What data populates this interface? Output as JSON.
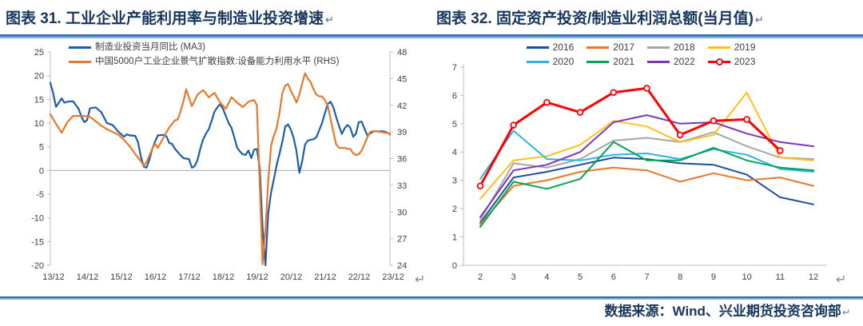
{
  "page": {
    "fig31_title": "图表 31. 工业企业产能利用率与制造业投资增速",
    "fig32_title": "图表 32. 固定资产投资/制造业利润总额(当月值)",
    "return_mark": "↵",
    "source_text": "数据来源：Wind、兴业期货投资咨询部",
    "accent_rule_color": "#2E6DA8",
    "title_color": "#17365D"
  },
  "chart_data": [
    {
      "type": "line",
      "title": "工业企业产能利用率与制造业投资增速",
      "grid": false,
      "legend_position": "top-left",
      "x_axis": {
        "unit": "months since 2013-12",
        "tick_months": [
          0,
          12,
          24,
          36,
          48,
          60,
          72,
          84,
          96,
          108,
          120
        ],
        "tick_labels": [
          "13/12",
          "14/12",
          "15/12",
          "16/12",
          "17/12",
          "18/12",
          "19/12",
          "20/12",
          "21/12",
          "22/12",
          "23/12"
        ]
      },
      "left_axis": {
        "range": [
          -20,
          25
        ],
        "ticks": [
          "25",
          "20",
          "15",
          "10",
          "5",
          "0",
          "-5",
          "-10",
          "-15",
          "-20"
        ],
        "tick_values": [
          25,
          20,
          15,
          10,
          5,
          0,
          -5,
          -10,
          -15,
          -20
        ]
      },
      "right_axis": {
        "range": [
          24,
          48
        ],
        "ticks": [
          "48",
          "45",
          "42",
          "39",
          "36",
          "33",
          "30",
          "27",
          "24"
        ],
        "tick_values": [
          48,
          45,
          42,
          39,
          36,
          33,
          30,
          27,
          24
        ]
      },
      "series": [
        {
          "name": "制造业投资当月同比 (MA3)",
          "axis": "left",
          "color": "#1F5CA9",
          "points": [
            [
              0,
              18.5
            ],
            [
              1,
              16.3
            ],
            [
              2,
              13.4
            ],
            [
              3,
              14.3
            ],
            [
              4,
              15.2
            ],
            [
              5,
              14.3
            ],
            [
              6,
              14.5
            ],
            [
              8,
              14.6
            ],
            [
              10,
              13.0
            ],
            [
              11,
              11.3
            ],
            [
              12,
              10.2
            ],
            [
              13,
              10.6
            ],
            [
              14,
              13.1
            ],
            [
              16,
              13.3
            ],
            [
              17,
              12.8
            ],
            [
              18,
              12.3
            ],
            [
              20,
              10.0
            ],
            [
              22,
              9.6
            ],
            [
              24,
              8.2
            ],
            [
              26,
              7.1
            ],
            [
              27,
              7.6
            ],
            [
              28,
              7.4
            ],
            [
              30,
              7.3
            ],
            [
              31,
              5.9
            ],
            [
              32,
              2.9
            ],
            [
              33,
              0.8
            ],
            [
              34,
              0.6
            ],
            [
              35,
              2.3
            ],
            [
              36,
              4.5
            ],
            [
              37,
              6.1
            ],
            [
              38,
              7.4
            ],
            [
              40,
              7.5
            ],
            [
              41,
              7.2
            ],
            [
              42,
              5.8
            ],
            [
              43,
              5.6
            ],
            [
              44,
              4.6
            ],
            [
              46,
              3.2
            ],
            [
              47,
              2.6
            ],
            [
              48,
              2.5
            ],
            [
              49,
              2.4
            ],
            [
              50,
              0.6
            ],
            [
              51,
              0.9
            ],
            [
              52,
              2.2
            ],
            [
              53,
              4.6
            ],
            [
              54,
              6.6
            ],
            [
              55,
              7.8
            ],
            [
              56,
              8.7
            ],
            [
              57,
              10.5
            ],
            [
              58,
              12.4
            ],
            [
              59,
              13.3
            ],
            [
              60,
              14.0
            ],
            [
              61,
              13.0
            ],
            [
              62,
              11.5
            ],
            [
              63,
              10.0
            ],
            [
              64,
              9.0
            ],
            [
              65,
              7.0
            ],
            [
              66,
              4.8
            ],
            [
              67,
              4.0
            ],
            [
              68,
              3.4
            ],
            [
              69,
              3.3
            ],
            [
              70,
              4.2
            ],
            [
              71,
              2.6
            ],
            [
              72,
              4.4
            ],
            [
              73,
              4.5
            ],
            [
              74,
              0.5
            ],
            [
              75,
              -12.0
            ],
            [
              76,
              -20.0
            ],
            [
              77,
              -9.0
            ],
            [
              78,
              -4.6
            ],
            [
              79,
              -1.8
            ],
            [
              80,
              1.2
            ],
            [
              81,
              3.6
            ],
            [
              82,
              6.1
            ],
            [
              83,
              9.3
            ],
            [
              84,
              9.7
            ],
            [
              85,
              8.6
            ],
            [
              86,
              6.8
            ],
            [
              87,
              4.0
            ],
            [
              88,
              -0.5
            ],
            [
              89,
              2.0
            ],
            [
              90,
              5.5
            ],
            [
              91,
              6.3
            ],
            [
              92,
              6.5
            ],
            [
              93,
              6.6
            ],
            [
              94,
              7.0
            ],
            [
              95,
              8.5
            ],
            [
              96,
              10.0
            ],
            [
              97,
              12.0
            ],
            [
              98,
              14.0
            ],
            [
              99,
              14.5
            ],
            [
              100,
              13.3
            ],
            [
              101,
              11.3
            ],
            [
              102,
              9.4
            ],
            [
              103,
              7.7
            ],
            [
              104,
              8.9
            ],
            [
              105,
              9.6
            ],
            [
              106,
              9.0
            ],
            [
              107,
              7.1
            ],
            [
              108,
              7.8
            ],
            [
              109,
              10.2
            ],
            [
              110,
              10.3
            ],
            [
              111,
              8.8
            ],
            [
              112,
              7.4
            ],
            [
              113,
              7.8
            ],
            [
              114,
              8.2
            ],
            [
              115,
              8.3
            ],
            [
              116,
              8.2
            ],
            [
              117,
              8.3
            ],
            [
              118,
              8.2
            ],
            [
              119,
              8.0
            ],
            [
              120,
              7.6
            ]
          ]
        },
        {
          "name": "中国5000户工业企业景气扩散指数:设备能力利用水平 (RHS)",
          "axis": "right",
          "color": "#E8792A",
          "points": [
            [
              0,
              41.0
            ],
            [
              2,
              39.9
            ],
            [
              4,
              38.9
            ],
            [
              6,
              40.1
            ],
            [
              8,
              40.8
            ],
            [
              10,
              40.8
            ],
            [
              12,
              40.8
            ],
            [
              14,
              40.7
            ],
            [
              16,
              40.2
            ],
            [
              18,
              39.7
            ],
            [
              20,
              39.3
            ],
            [
              22,
              39.0
            ],
            [
              24,
              38.7
            ],
            [
              26,
              38.1
            ],
            [
              28,
              37.4
            ],
            [
              30,
              36.5
            ],
            [
              32,
              35.7
            ],
            [
              33,
              35.2
            ],
            [
              34,
              35.6
            ],
            [
              36,
              37.1
            ],
            [
              37,
              37.7
            ],
            [
              38,
              37.2
            ],
            [
              40,
              38.4
            ],
            [
              42,
              39.5
            ],
            [
              44,
              40.3
            ],
            [
              45,
              40.4
            ],
            [
              46,
              41.3
            ],
            [
              47,
              42.4
            ],
            [
              48,
              43.8
            ],
            [
              50,
              41.9
            ],
            [
              52,
              43.2
            ],
            [
              54,
              43.7
            ],
            [
              56,
              42.9
            ],
            [
              58,
              43.4
            ],
            [
              60,
              42.3
            ],
            [
              62,
              41.6
            ],
            [
              64,
              42.9
            ],
            [
              66,
              42.3
            ],
            [
              68,
              41.8
            ],
            [
              70,
              42.4
            ],
            [
              72,
              42.6
            ],
            [
              73,
              42.0
            ],
            [
              74,
              33.0
            ],
            [
              75,
              24.1
            ],
            [
              76,
              28.0
            ],
            [
              77,
              33.5
            ],
            [
              78,
              37.5
            ],
            [
              79,
              38.6
            ],
            [
              80,
              39.5
            ],
            [
              81,
              41.2
            ],
            [
              82,
              43.4
            ],
            [
              83,
              44.2
            ],
            [
              84,
              44.4
            ],
            [
              85,
              43.6
            ],
            [
              86,
              43.0
            ],
            [
              87,
              42.3
            ],
            [
              88,
              43.2
            ],
            [
              89,
              44.5
            ],
            [
              90,
              45.6
            ],
            [
              91,
              45.0
            ],
            [
              92,
              44.6
            ],
            [
              93,
              43.8
            ],
            [
              94,
              43.2
            ],
            [
              95,
              43.0
            ],
            [
              96,
              43.0
            ],
            [
              97,
              42.6
            ],
            [
              98,
              42.0
            ],
            [
              99,
              40.5
            ],
            [
              100,
              39.0
            ],
            [
              101,
              37.6
            ],
            [
              102,
              37.2
            ],
            [
              103,
              37.2
            ],
            [
              104,
              37.2
            ],
            [
              105,
              37.1
            ],
            [
              106,
              37.1
            ],
            [
              107,
              36.6
            ],
            [
              108,
              36.4
            ],
            [
              109,
              36.5
            ],
            [
              110,
              36.9
            ],
            [
              111,
              37.6
            ],
            [
              112,
              38.4
            ],
            [
              113,
              39.0
            ],
            [
              114,
              39.1
            ],
            [
              115,
              39.1
            ],
            [
              116,
              39.0
            ],
            [
              117,
              39.0
            ],
            [
              118,
              38.9
            ],
            [
              119,
              38.9
            ],
            [
              120,
              38.8
            ]
          ]
        }
      ]
    },
    {
      "type": "line",
      "title": "固定资产投资/制造业利润总额(当月值)",
      "grid": false,
      "legend_position": "top-center",
      "x": [
        2,
        3,
        4,
        5,
        6,
        7,
        8,
        9,
        10,
        11,
        12
      ],
      "x_tick_labels": [
        "2",
        "3",
        "4",
        "5",
        "6",
        "7",
        "8",
        "9",
        "10",
        "11",
        "12"
      ],
      "ylim": [
        0,
        7
      ],
      "y_ticks": [
        "0",
        "1",
        "2",
        "3",
        "4",
        "5",
        "6",
        "7"
      ],
      "y_tick_values": [
        0,
        1,
        2,
        3,
        4,
        5,
        6,
        7
      ],
      "series": [
        {
          "name": "2016",
          "color": "#1F4E9C",
          "values": [
            1.5,
            3.1,
            3.3,
            3.55,
            3.8,
            3.75,
            3.6,
            3.55,
            3.2,
            2.4,
            2.15
          ]
        },
        {
          "name": "2017",
          "color": "#E8792A",
          "values": [
            1.45,
            2.8,
            3.0,
            3.3,
            3.45,
            3.35,
            2.95,
            3.25,
            3.0,
            3.1,
            2.8
          ]
        },
        {
          "name": "2018",
          "color": "#A6A6A6",
          "values": [
            1.6,
            3.6,
            3.45,
            3.75,
            4.4,
            4.5,
            4.35,
            4.7,
            4.2,
            3.8,
            3.75
          ]
        },
        {
          "name": "2019",
          "color": "#FFC01E",
          "values": [
            2.35,
            3.7,
            3.85,
            4.25,
            5.1,
            4.9,
            4.35,
            4.6,
            6.1,
            3.8,
            3.7
          ]
        },
        {
          "name": "2020",
          "color": "#2BB3EA",
          "values": [
            3.05,
            4.75,
            3.75,
            3.7,
            3.9,
            3.95,
            3.75,
            4.1,
            3.9,
            3.4,
            3.3
          ]
        },
        {
          "name": "2021",
          "color": "#00A651",
          "values": [
            1.35,
            2.95,
            2.7,
            3.05,
            4.35,
            3.7,
            3.7,
            4.15,
            3.7,
            3.45,
            3.35
          ]
        },
        {
          "name": "2022",
          "color": "#7B37B8",
          "values": [
            1.7,
            3.35,
            3.55,
            4.0,
            5.05,
            5.3,
            5.0,
            5.05,
            4.65,
            4.35,
            4.2
          ]
        },
        {
          "name": "2023",
          "color": "#FF0000",
          "marker": true,
          "values": [
            2.8,
            4.95,
            5.75,
            5.4,
            6.1,
            6.25,
            4.6,
            5.1,
            5.15,
            4.05,
            null
          ]
        }
      ]
    }
  ]
}
